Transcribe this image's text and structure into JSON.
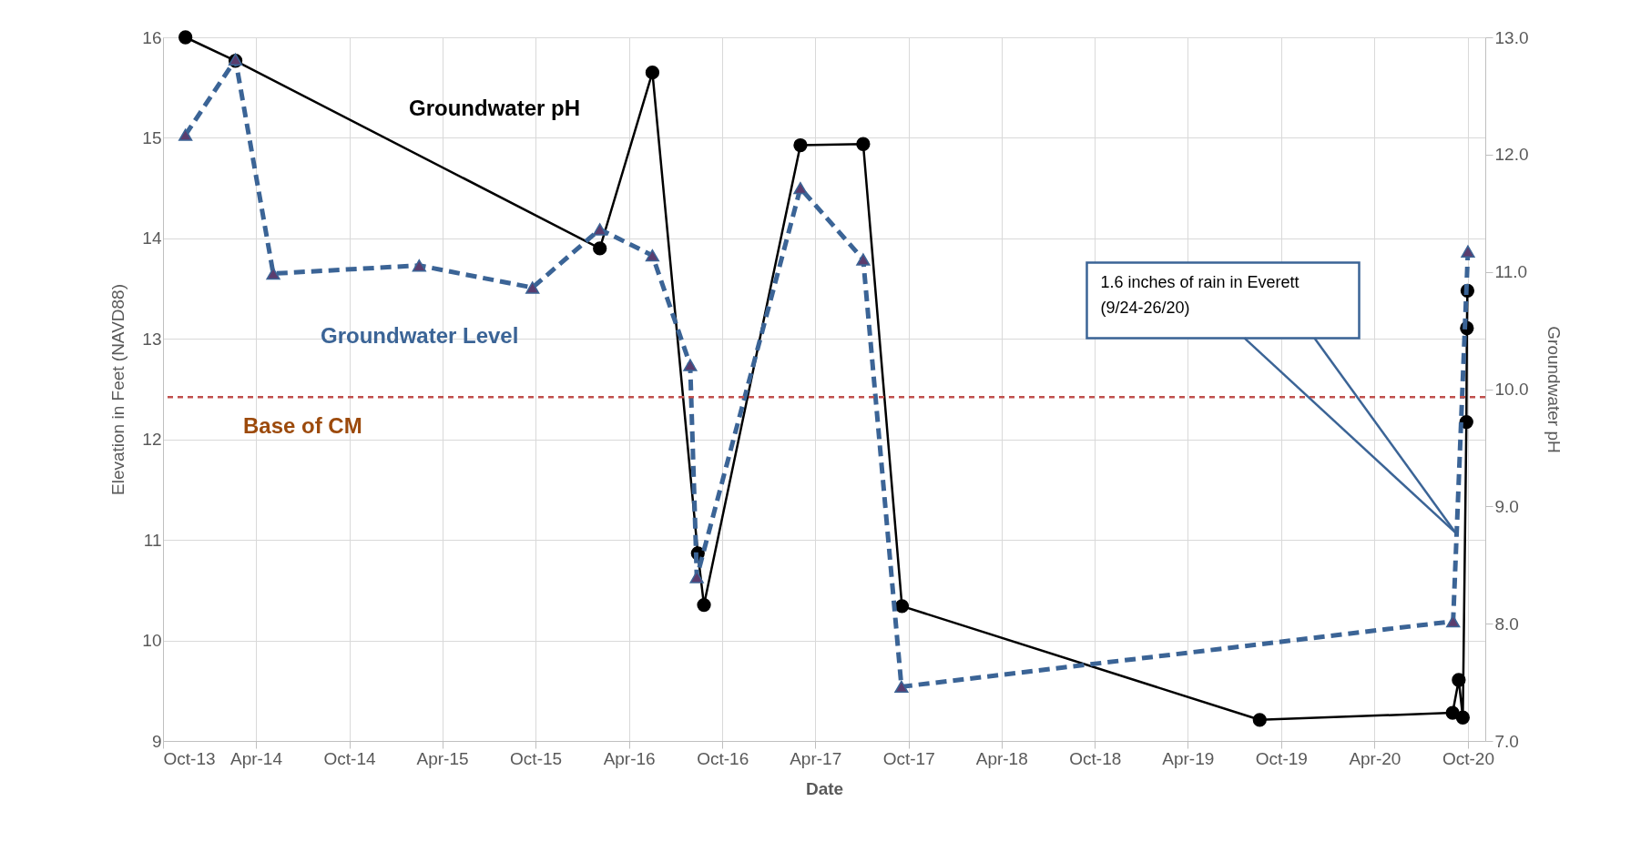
{
  "chart_data": {
    "type": "line",
    "xlabel": "Date",
    "ylabel": "Elevation in Feet (NAVD88)",
    "y2label": "Groundwater pH",
    "xlim": [
      "2013-10-01",
      "2020-11-04"
    ],
    "xticks": [
      {
        "value": "2013-10-01",
        "label": "Oct-13"
      },
      {
        "value": "2014-04-01",
        "label": "Apr-14"
      },
      {
        "value": "2014-10-01",
        "label": "Oct-14"
      },
      {
        "value": "2015-04-01",
        "label": "Apr-15"
      },
      {
        "value": "2015-10-01",
        "label": "Oct-15"
      },
      {
        "value": "2016-04-01",
        "label": "Apr-16"
      },
      {
        "value": "2016-10-01",
        "label": "Oct-16"
      },
      {
        "value": "2017-04-01",
        "label": "Apr-17"
      },
      {
        "value": "2017-10-01",
        "label": "Oct-17"
      },
      {
        "value": "2018-04-01",
        "label": "Apr-18"
      },
      {
        "value": "2018-10-01",
        "label": "Oct-18"
      },
      {
        "value": "2019-04-01",
        "label": "Apr-19"
      },
      {
        "value": "2019-10-01",
        "label": "Oct-19"
      },
      {
        "value": "2020-04-01",
        "label": "Apr-20"
      },
      {
        "value": "2020-10-01",
        "label": "Oct-20"
      }
    ],
    "ylim": [
      9,
      16
    ],
    "yticks": [
      9,
      10,
      11,
      12,
      13,
      14,
      15,
      16
    ],
    "y2lim": [
      7,
      13
    ],
    "y2ticks": [
      {
        "value": 7,
        "label": "7.0"
      },
      {
        "value": 8,
        "label": "8.0"
      },
      {
        "value": 9,
        "label": "9.0"
      },
      {
        "value": 10,
        "label": "10.0"
      },
      {
        "value": 11,
        "label": "11.0"
      },
      {
        "value": 12,
        "label": "12.0"
      },
      {
        "value": 13,
        "label": "13.0"
      }
    ],
    "grid": true,
    "series": [
      {
        "name": "Groundwater Level",
        "color": "#3b6496",
        "marker": "triangle",
        "line_style": "dashed",
        "x": [
          "2013-11-14",
          "2014-02-20",
          "2014-05-05",
          "2015-02-15",
          "2015-09-25",
          "2016-02-04",
          "2016-05-17",
          "2016-07-30",
          "2016-08-12",
          "2017-03-03",
          "2017-07-04",
          "2017-09-17",
          "2020-09-02",
          "2020-10-01"
        ],
        "values": [
          15.03,
          15.78,
          13.65,
          13.73,
          13.51,
          14.09,
          13.83,
          12.74,
          10.63,
          14.5,
          13.79,
          9.54,
          10.19,
          13.87
        ]
      },
      {
        "name": "Groundwater pH",
        "color": "#000000",
        "marker": "circle",
        "line_style": "solid",
        "axis": "y2",
        "x": [
          "2013-11-14",
          "2014-02-20",
          "2016-02-04",
          "2016-05-17",
          "2016-08-14",
          "2016-08-26",
          "2017-03-03",
          "2017-07-04",
          "2017-09-18",
          "2019-08-20",
          "2020-09-01",
          "2020-09-13",
          "2020-09-21",
          "2020-09-28",
          "2020-09-29",
          "2020-09-30"
        ],
        "values": [
          13.0,
          12.8,
          11.2,
          12.7,
          8.6,
          8.16,
          12.08,
          12.09,
          8.15,
          7.18,
          7.24,
          7.52,
          7.2,
          9.72,
          10.52,
          10.84
        ]
      }
    ],
    "ref_lines": [
      {
        "axis": "y",
        "value": 12.42,
        "label": "Base of CM",
        "color": "#c0504d",
        "line_style": "dashed"
      }
    ],
    "annotations": [
      {
        "text": "1.6 inches of rain in Everett\n(9/24-26/20)",
        "x": "2020-09-07",
        "y": 11.07
      }
    ]
  }
}
